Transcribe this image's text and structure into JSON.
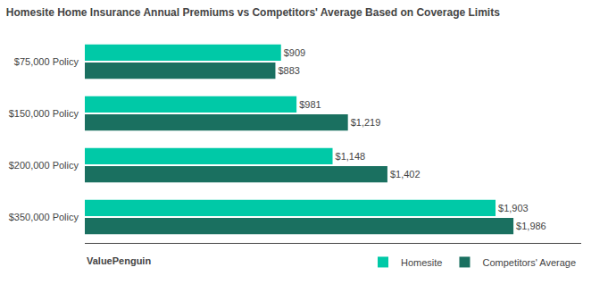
{
  "chart_data": {
    "type": "bar",
    "orientation": "horizontal",
    "title": "Homesite Home Insurance Annual Premiums vs Competitors' Average Based on Coverage Limits",
    "categories": [
      "$75,000 Policy",
      "$150,000 Policy",
      "$200,000 Policy",
      "$350,000 Policy"
    ],
    "series": [
      {
        "name": "Homesite",
        "color": "#00C9A7",
        "values": [
          909,
          981,
          1148,
          1903
        ],
        "value_labels": [
          "$909",
          "$981",
          "$1,148",
          "$1,903"
        ]
      },
      {
        "name": "Competitors' Average",
        "color": "#1A7060",
        "values": [
          883,
          1219,
          1402,
          1986
        ],
        "value_labels": [
          "$883",
          "$1,219",
          "$1,402",
          "$1,986"
        ]
      }
    ],
    "xlim": [
      0,
      2300
    ],
    "tick_labels": "y",
    "data_labels": true,
    "grid": false,
    "legend": "lower right",
    "annotations": [
      "ValuePenguin"
    ]
  }
}
